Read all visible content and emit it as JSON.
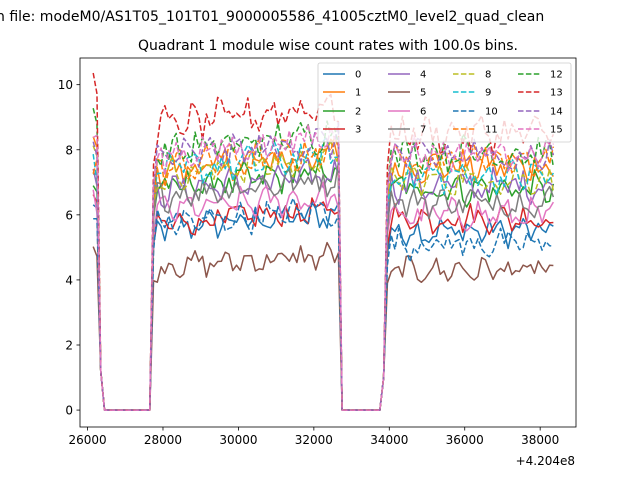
{
  "chart_data": {
    "type": "line",
    "suptitle": "n file: modeM0/AS1T05_101T01_9000005586_41005cztM0_level2_quad_clean",
    "title": "Quadrant 1 module wise count rates with 100.0s bins.",
    "xlabel": "",
    "ylabel": "",
    "x_offset_label": "+4.204e8",
    "xlim": [
      25800,
      38950
    ],
    "ylim": [
      -0.52,
      10.82
    ],
    "x_ticks": [
      26000,
      28000,
      30000,
      32000,
      34000,
      36000,
      38000
    ],
    "x_tick_labels": [
      "26000",
      "28000",
      "30000",
      "32000",
      "34000",
      "36000",
      "38000"
    ],
    "y_ticks": [
      0,
      2,
      4,
      6,
      8,
      10
    ],
    "y_tick_labels": [
      "0",
      "2",
      "4",
      "6",
      "8",
      "10"
    ],
    "x_start": 26150,
    "x_step": 100,
    "n_points": 123,
    "segments": [
      {
        "from": 26150,
        "to": 26350,
        "state": "on"
      },
      {
        "from": 26450,
        "to": 27650,
        "state": "off"
      },
      {
        "from": 27750,
        "to": 32650,
        "state": "on"
      },
      {
        "from": 32750,
        "to": 33850,
        "state": "off"
      },
      {
        "from": 33950,
        "to": 38350,
        "state": "on"
      }
    ],
    "transition_values": {
      "26350": 1.2,
      "33850": 1.0
    },
    "legend_position": "top-right",
    "legend_columns": 4,
    "series": [
      {
        "name": "0",
        "color": "#1f77b4",
        "dash": "solid",
        "level1": 6.2,
        "level2": 5.6,
        "level3": 5.5
      },
      {
        "name": "1",
        "color": "#ff7f0e",
        "dash": "solid",
        "level1": 7.9,
        "level2": 7.3,
        "level3": 7.5
      },
      {
        "name": "2",
        "color": "#2ca02c",
        "dash": "solid",
        "level1": 6.8,
        "level2": 6.8,
        "level3": 6.8
      },
      {
        "name": "3",
        "color": "#d62728",
        "dash": "solid",
        "level1": 6.5,
        "level2": 5.7,
        "level3": 5.9
      },
      {
        "name": "4",
        "color": "#9467bd",
        "dash": "solid",
        "level1": 7.0,
        "level2": 6.7,
        "level3": 6.9
      },
      {
        "name": "5",
        "color": "#8c564b",
        "dash": "solid",
        "level1": 4.7,
        "level2": 4.4,
        "level3": 4.3
      },
      {
        "name": "6",
        "color": "#e377c2",
        "dash": "solid",
        "level1": 6.6,
        "level2": 6.1,
        "level3": 6.0
      },
      {
        "name": "7",
        "color": "#7f7f7f",
        "dash": "solid",
        "level1": 7.2,
        "level2": 6.6,
        "level3": 6.4
      },
      {
        "name": "8",
        "color": "#bcbd22",
        "dash": "dashed",
        "level1": 7.8,
        "level2": 7.2,
        "level3": 7.1
      },
      {
        "name": "9",
        "color": "#17becf",
        "dash": "dashed",
        "level1": 7.5,
        "level2": 7.3,
        "level3": 7.2
      },
      {
        "name": "10",
        "color": "#1f77b4",
        "dash": "dashed",
        "level1": 6.0,
        "level2": 5.7,
        "level3": 5.1
      },
      {
        "name": "11",
        "color": "#ff7f0e",
        "dash": "dashed",
        "level1": 7.6,
        "level2": 7.4,
        "level3": 7.7
      },
      {
        "name": "12",
        "color": "#2ca02c",
        "dash": "dashed",
        "level1": 8.8,
        "level2": 7.9,
        "level3": 7.9
      },
      {
        "name": "13",
        "color": "#d62728",
        "dash": "dashed",
        "level1": 10.1,
        "level2": 8.7,
        "level3": 8.5
      },
      {
        "name": "14",
        "color": "#9467bd",
        "dash": "dashed",
        "level1": 8.3,
        "level2": 7.7,
        "level3": 7.8
      },
      {
        "name": "15",
        "color": "#e377c2",
        "dash": "dashed",
        "level1": 8.2,
        "level2": 7.8,
        "level3": 7.9
      }
    ]
  }
}
